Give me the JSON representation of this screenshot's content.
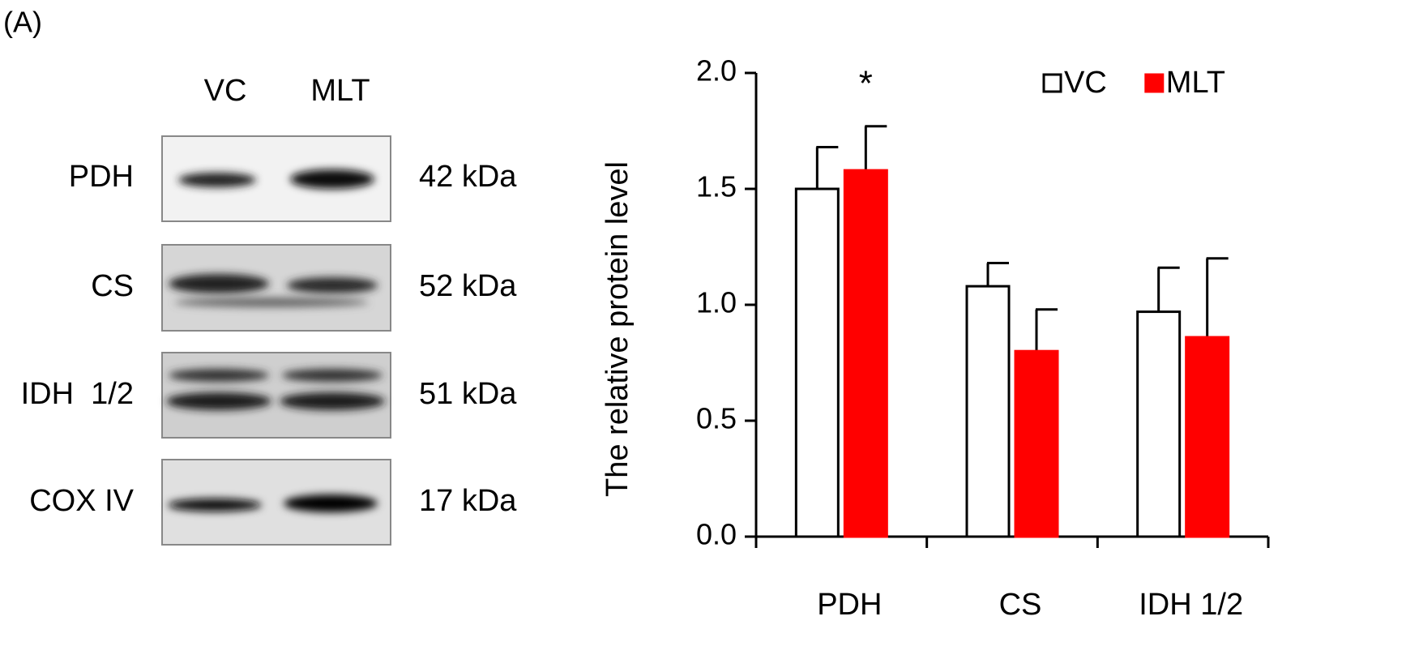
{
  "panel_label": "(A)",
  "blot": {
    "lanes": [
      "VC",
      "MLT"
    ],
    "rows": [
      {
        "protein": "PDH",
        "size": "42 kDa"
      },
      {
        "protein": "CS",
        "size": "52 kDa"
      },
      {
        "protein": "IDH  1/2",
        "size": "51 kDa"
      },
      {
        "protein": "COX IV",
        "size": "17 kDa"
      }
    ]
  },
  "chart_data": {
    "type": "bar",
    "y_label": "The relative protein level",
    "categories": [
      "PDH",
      "CS",
      "IDH 1/2"
    ],
    "series": [
      {
        "name": "VC",
        "color": "#ffffff",
        "edgecolor": "#000000",
        "values": [
          1.5,
          1.08,
          0.97
        ],
        "errors": [
          0.18,
          0.1,
          0.19
        ]
      },
      {
        "name": "MLT",
        "color": "#ff0000",
        "edgecolor": "#ff0000",
        "values": [
          1.58,
          0.8,
          0.86
        ],
        "errors": [
          0.19,
          0.18,
          0.34
        ]
      }
    ],
    "annotation": "*",
    "ylim": [
      0,
      2
    ],
    "yticks": [
      {
        "value": 0,
        "label": "0.0"
      },
      0.5,
      {
        "value": 1,
        "label": "1.0"
      },
      1.5,
      {
        "value": 2,
        "label": "2.0"
      }
    ],
    "legend": "upper right",
    "grid": false
  }
}
